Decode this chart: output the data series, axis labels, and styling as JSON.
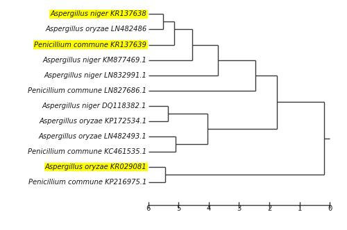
{
  "taxa": [
    {
      "label_italic": "Aspergillus niger",
      "label_code": "KR137638",
      "y": 1,
      "highlight": true
    },
    {
      "label_italic": "Aspergillus oryzae",
      "label_code": "LN482486",
      "y": 2,
      "highlight": false
    },
    {
      "label_italic": "Penicillium commune",
      "label_code": "KR137639",
      "y": 3,
      "highlight": true
    },
    {
      "label_italic": "Aspergillus niger",
      "label_code": "KM877469.1",
      "y": 4,
      "highlight": false
    },
    {
      "label_italic": "Aspergillus niger",
      "label_code": "LN832991.1",
      "y": 5,
      "highlight": false
    },
    {
      "label_italic": "Penicillium commune",
      "label_code": "LN827686.1",
      "y": 6,
      "highlight": false
    },
    {
      "label_italic": "Aspergillus niger",
      "label_code": "DQ118382.1",
      "y": 7,
      "highlight": false
    },
    {
      "label_italic": "Aspergillus oryzae",
      "label_code": "KP172534.1",
      "y": 8,
      "highlight": false
    },
    {
      "label_italic": "Aspergillus oryzae",
      "label_code": "LN482493.1",
      "y": 9,
      "highlight": false
    },
    {
      "label_italic": "Penicillium commune",
      "label_code": "KC461535.1",
      "y": 10,
      "highlight": false
    },
    {
      "label_italic": "Aspergillus oryzae",
      "label_code": "KR029081",
      "y": 11,
      "highlight": true
    },
    {
      "label_italic": "Penicillium commune",
      "label_code": "KP216975.1",
      "y": 12,
      "highlight": false
    }
  ],
  "highlight_color": "#FFFF00",
  "line_color": "#3a3a3a",
  "background_color": "#ffffff",
  "text_color": "#1a1a1a",
  "fontsize": 7.2
}
